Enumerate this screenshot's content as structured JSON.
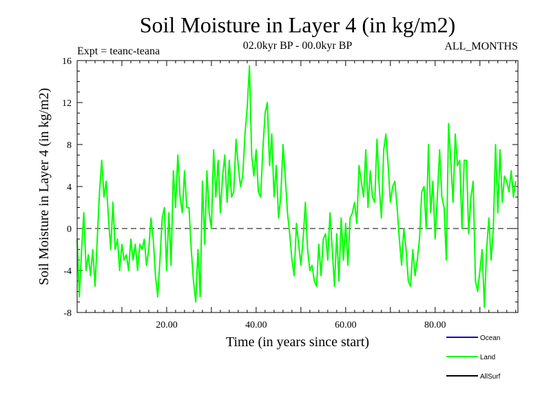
{
  "chart_data": {
    "type": "line",
    "title": "Soil Moisture in Layer 4 (in kg/m2)",
    "subtitle_left": "Expt = teanc-teana",
    "subtitle_center": "02.0kyr BP - 00.0kyr BP",
    "subtitle_right": "ALL_MONTHS",
    "xlabel": "Time (in years since start)",
    "ylabel": "Soil Moisture in Layer 4 (in kg/m2)",
    "xlim": [
      0,
      98.5
    ],
    "ylim": [
      -8,
      16
    ],
    "x_ticks": [
      20,
      40,
      60,
      80
    ],
    "x_tick_labels": [
      "20.00",
      "40.00",
      "60.00",
      "80.00"
    ],
    "y_ticks": [
      -8,
      -4,
      0,
      4,
      8,
      12,
      16
    ],
    "y_tick_labels": [
      "-8",
      "-4",
      "0",
      "4",
      "8",
      "12",
      "16"
    ],
    "reference_line": 0,
    "legend": [
      {
        "name": "Ocean",
        "color": "#0000cc"
      },
      {
        "name": "Land",
        "color": "#00ff00"
      },
      {
        "name": "AllSurf",
        "color": "#000000"
      }
    ],
    "series": [
      {
        "name": "Land",
        "color": "#00ff00",
        "x_start": 0,
        "x_step": 0.5,
        "values": [
          -1,
          -6.5,
          -2,
          1.5,
          -4,
          -2.5,
          -4.5,
          -2,
          -5.5,
          -1,
          3.5,
          6.5,
          3,
          4.5,
          1,
          -2,
          2.5,
          -2,
          -1,
          -4,
          -1.5,
          -3,
          -2.5,
          -4,
          -1,
          -3,
          -1.5,
          -4,
          -1.5,
          -2,
          -1,
          -3.5,
          -2,
          1,
          -1,
          -4.5,
          -6.5,
          -3,
          1,
          2,
          -4,
          1.5,
          -3.5,
          5.5,
          2,
          7,
          3,
          1.5,
          5.5,
          2,
          2,
          -2,
          -5,
          -7,
          -2,
          -6.5,
          4.5,
          -1.5,
          5.5,
          1.5,
          0,
          7.5,
          3,
          6.5,
          1.5,
          5,
          7,
          2.5,
          6.5,
          3,
          3.5,
          8.5,
          6,
          4,
          5,
          9,
          11.5,
          15.5,
          7,
          5,
          7.5,
          3.5,
          3,
          7.5,
          11,
          12,
          6,
          9,
          3,
          6,
          1,
          3,
          8,
          5,
          1.5,
          -0.5,
          -3,
          -4.5,
          0.5,
          -1.5,
          -3.5,
          -1,
          2.5,
          -2,
          -4,
          -3.5,
          -5,
          -5.5,
          -1.5,
          -4.5,
          -1,
          -0.5,
          -3,
          1.5,
          -2,
          -5.5,
          -0.5,
          -5,
          1,
          -3,
          0.5,
          -3.5,
          1,
          1.5,
          2.5,
          0.5,
          6,
          4.5,
          3,
          7.5,
          2,
          5.5,
          3,
          2.5,
          8.5,
          4,
          1,
          7.5,
          9,
          6,
          2.5,
          4,
          4.5,
          2,
          -1,
          -3.5,
          0,
          -2,
          -5,
          -5.5,
          -2,
          -4.5,
          -3,
          -1,
          3.5,
          4,
          0,
          8,
          1.5,
          4.5,
          -1,
          3,
          7.5,
          3,
          2,
          -3,
          10,
          6.5,
          2.5,
          9,
          6,
          6.5,
          0,
          6.5,
          6.5,
          -0.5,
          3,
          4.5,
          -5,
          -6,
          -4,
          -2,
          -7.5,
          -2,
          1,
          -3,
          0,
          8,
          1.5,
          7.5,
          2.5,
          5,
          4.5,
          3.5,
          5.5,
          3,
          4.5
        ]
      }
    ]
  }
}
